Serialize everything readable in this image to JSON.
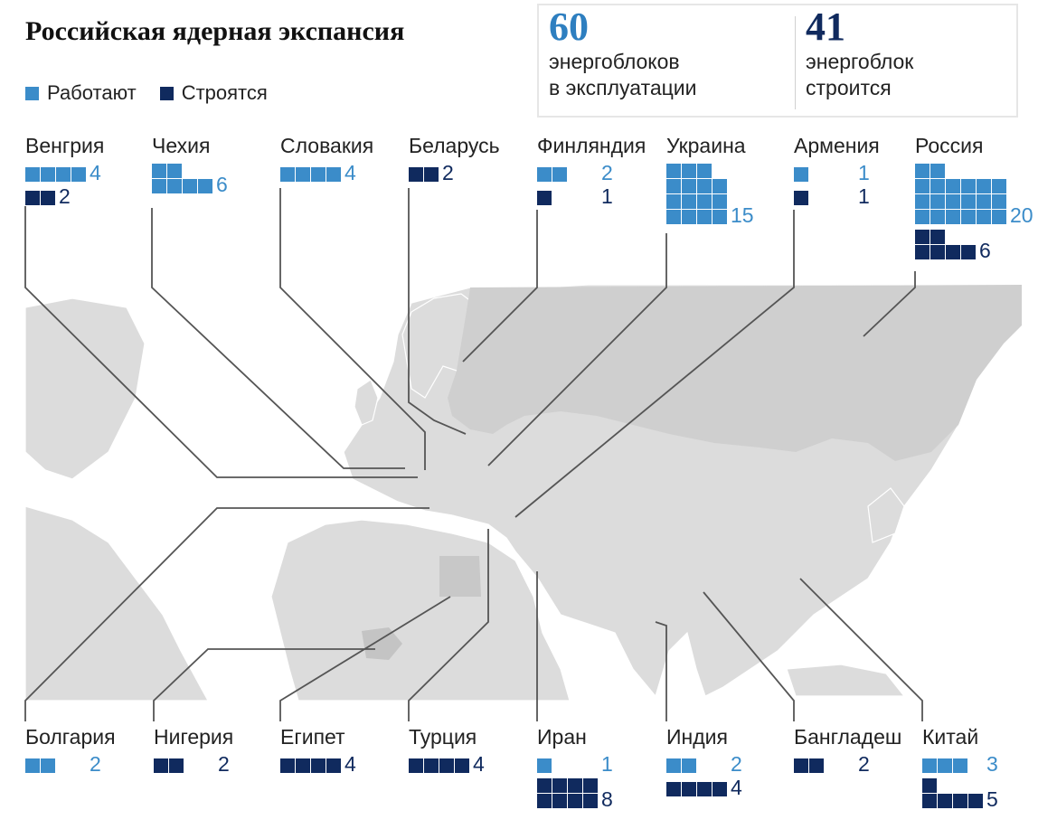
{
  "title": "Российская ядерная экспансия",
  "legend": [
    {
      "label": "Работают",
      "color": "#3b8cc9"
    },
    {
      "label": "Строятся",
      "color": "#102a5e"
    }
  ],
  "stats": [
    {
      "number": "60",
      "text": [
        "энергоблоков",
        "в эксплуатации"
      ],
      "color": "#2e7fc0"
    },
    {
      "number": "41",
      "text": [
        "энергоблок",
        "строится"
      ],
      "color": "#102a5e"
    }
  ],
  "countries": [
    {
      "name": "Венгрия",
      "operating": 4,
      "building": 2
    },
    {
      "name": "Чехия",
      "operating": 6,
      "building": 0
    },
    {
      "name": "Словакия",
      "operating": 4,
      "building": 0
    },
    {
      "name": "Беларусь",
      "operating": 0,
      "building": 2
    },
    {
      "name": "Финляндия",
      "operating": 2,
      "building": 1
    },
    {
      "name": "Украина",
      "operating": 15,
      "building": 0
    },
    {
      "name": "Армения",
      "operating": 1,
      "building": 1
    },
    {
      "name": "Россия",
      "operating": 20,
      "building": 6
    },
    {
      "name": "Болгария",
      "operating": 2,
      "building": 0
    },
    {
      "name": "Нигерия",
      "operating": 0,
      "building": 2
    },
    {
      "name": "Египет",
      "operating": 0,
      "building": 4
    },
    {
      "name": "Турция",
      "operating": 0,
      "building": 4
    },
    {
      "name": "Иран",
      "operating": 1,
      "building": 8
    },
    {
      "name": "Индия",
      "operating": 2,
      "building": 4
    },
    {
      "name": "Бангладеш",
      "operating": 0,
      "building": 2
    },
    {
      "name": "Китай",
      "operating": 3,
      "building": 5
    }
  ]
}
